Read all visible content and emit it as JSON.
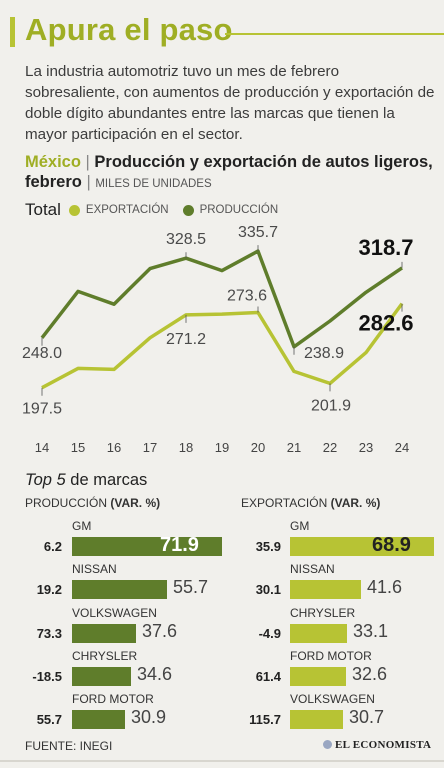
{
  "header": {
    "title": "Apura el paso"
  },
  "intro": "La industria automotriz tuvo un mes de febrero sobresaliente, con aumentos de producción y exportación de doble dígito abundantes entre las marcas que tienen la mayor participación en el sector.",
  "chart_title": {
    "country": "México",
    "separator": "|",
    "main": "Producción y exportación de autos ligeros, febrero",
    "separator2": "|",
    "unit": "MILES DE UNIDADES"
  },
  "legend": {
    "total": "Total",
    "export_label": "EXPORTACIÓN",
    "production_label": "PRODUCCIÓN"
  },
  "colors": {
    "export": "#b7c334",
    "production": "#5f7d2b",
    "export_bar": "#b7c334",
    "production_bar": "#5f7d2b"
  },
  "chart_data": [
    {
      "type": "line",
      "x": [
        "14",
        "15",
        "16",
        "17",
        "18",
        "19",
        "20",
        "21",
        "22",
        "23",
        "24"
      ],
      "series": [
        {
          "name": "PRODUCCIÓN",
          "values": [
            248.0,
            295,
            282,
            318,
            328.5,
            316,
            335.7,
            238.9,
            265,
            294,
            318.7
          ]
        },
        {
          "name": "EXPORTACIÓN",
          "values": [
            197.5,
            217,
            216,
            248,
            271.2,
            272,
            273.6,
            214,
            201.9,
            233,
            282.6
          ]
        }
      ],
      "labels": {
        "production": [
          {
            "x": "14",
            "text": "248.0"
          },
          {
            "x": "18",
            "text": "328.5"
          },
          {
            "x": "20",
            "text": "335.7"
          },
          {
            "x": "21",
            "text": "238.9"
          },
          {
            "x": "24",
            "text": "318.7"
          }
        ],
        "export": [
          {
            "x": "14",
            "text": "197.5"
          },
          {
            "x": "18",
            "text": "271.2"
          },
          {
            "x": "20",
            "text": "273.6"
          },
          {
            "x": "22",
            "text": "201.9"
          },
          {
            "x": "24",
            "text": "282.6"
          }
        ]
      },
      "ylim": [
        180,
        350
      ]
    },
    {
      "type": "bar",
      "title": "PRODUCCIÓN",
      "categories": [
        "GM",
        "NISSAN",
        "VOLKSWAGEN",
        "CHRYSLER",
        "FORD MOTOR"
      ],
      "values": [
        71.9,
        55.7,
        37.6,
        34.6,
        30.9
      ],
      "var": [
        "6.2",
        "19.2",
        "73.3",
        "-18.5",
        "55.7"
      ]
    },
    {
      "type": "bar",
      "title": "EXPORTACIÓN",
      "categories": [
        "GM",
        "NISSAN",
        "CHRYSLER",
        "FORD MOTOR",
        "VOLKSWAGEN"
      ],
      "values": [
        68.9,
        41.6,
        33.1,
        32.6,
        30.7
      ],
      "var": [
        "35.9",
        "30.1",
        "-4.9",
        "61.4",
        "115.7"
      ]
    }
  ],
  "top5": {
    "title_italic": "Top 5",
    "title_rest": " de marcas",
    "production_head": "PRODUCCIÓN",
    "export_head": "EXPORTACIÓN",
    "var_head": "(VAR. %)",
    "production": [
      {
        "brand": "GM",
        "var": "6.2",
        "value": "71.9"
      },
      {
        "brand": "NISSAN",
        "var": "19.2",
        "value": "55.7"
      },
      {
        "brand": "VOLKSWAGEN",
        "var": "73.3",
        "value": "37.6"
      },
      {
        "brand": "CHRYSLER",
        "var": "-18.5",
        "value": "34.6"
      },
      {
        "brand": "FORD MOTOR",
        "var": "55.7",
        "value": "30.9"
      }
    ],
    "export": [
      {
        "brand": "GM",
        "var": "35.9",
        "value": "68.9"
      },
      {
        "brand": "NISSAN",
        "var": "30.1",
        "value": "41.6"
      },
      {
        "brand": "CHRYSLER",
        "var": "-4.9",
        "value": "33.1"
      },
      {
        "brand": "FORD MOTOR",
        "var": "61.4",
        "value": "32.6"
      },
      {
        "brand": "VOLKSWAGEN",
        "var": "115.7",
        "value": "30.7"
      }
    ]
  },
  "footer": {
    "source": "FUENTE: INEGI",
    "logo": "EL ECONOMISTA"
  }
}
